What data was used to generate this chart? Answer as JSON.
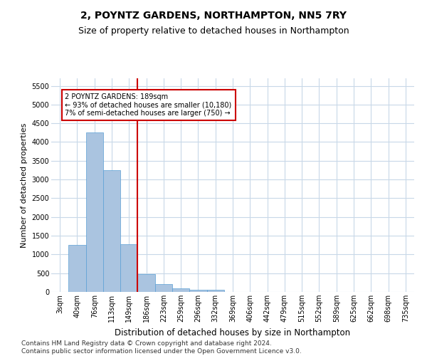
{
  "title1": "2, POYNTZ GARDENS, NORTHAMPTON, NN5 7RY",
  "title2": "Size of property relative to detached houses in Northampton",
  "xlabel": "Distribution of detached houses by size in Northampton",
  "ylabel": "Number of detached properties",
  "footnote": "Contains HM Land Registry data © Crown copyright and database right 2024.\nContains public sector information licensed under the Open Government Licence v3.0.",
  "bar_labels": [
    "3sqm",
    "40sqm",
    "76sqm",
    "113sqm",
    "149sqm",
    "186sqm",
    "223sqm",
    "259sqm",
    "296sqm",
    "332sqm",
    "369sqm",
    "406sqm",
    "442sqm",
    "479sqm",
    "515sqm",
    "552sqm",
    "589sqm",
    "625sqm",
    "662sqm",
    "698sqm",
    "735sqm"
  ],
  "bar_values": [
    0,
    1250,
    4250,
    3250,
    1280,
    470,
    210,
    100,
    60,
    50,
    0,
    0,
    0,
    0,
    0,
    0,
    0,
    0,
    0,
    0,
    0
  ],
  "bar_color": "#aac4e0",
  "bar_edge_color": "#5a9fd4",
  "vline_color": "#cc0000",
  "annotation_text": "2 POYNTZ GARDENS: 189sqm\n← 93% of detached houses are smaller (10,180)\n7% of semi-detached houses are larger (750) →",
  "annotation_box_color": "#ffffff",
  "annotation_box_edge": "#cc0000",
  "ylim": [
    0,
    5700
  ],
  "yticks": [
    0,
    500,
    1000,
    1500,
    2000,
    2500,
    3000,
    3500,
    4000,
    4500,
    5000,
    5500
  ],
  "bg_color": "#ffffff",
  "grid_color": "#c8d8e8",
  "title1_fontsize": 10,
  "title2_fontsize": 9,
  "xlabel_fontsize": 8.5,
  "ylabel_fontsize": 8,
  "tick_fontsize": 7,
  "annotation_fontsize": 7,
  "footnote_fontsize": 6.5
}
